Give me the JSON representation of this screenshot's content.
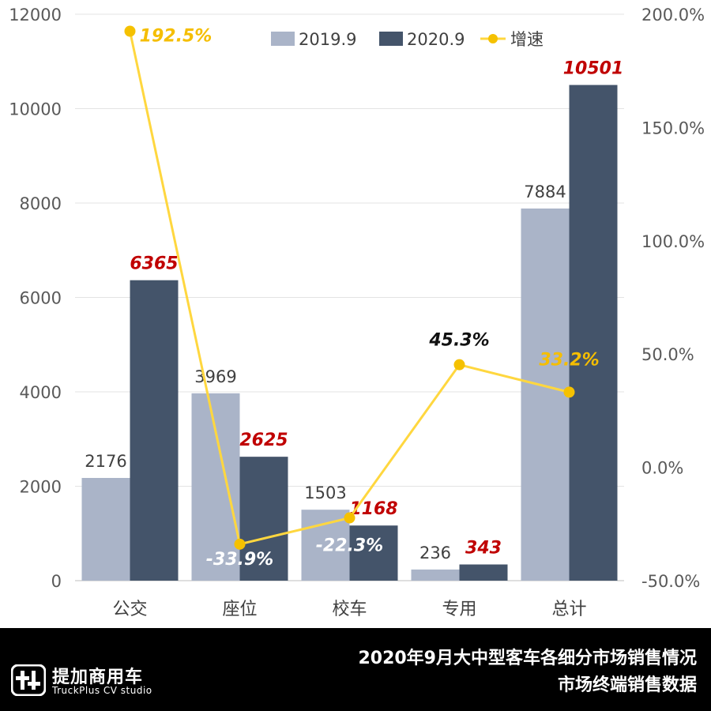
{
  "chart_data": {
    "type": "bar",
    "categories": [
      "公交",
      "座位",
      "校车",
      "专用",
      "总计"
    ],
    "series": [
      {
        "name": "2019.9",
        "values": [
          2176,
          3969,
          1503,
          236,
          7884
        ],
        "color": "#aab4c8",
        "axis": "left"
      },
      {
        "name": "2020.9",
        "values": [
          6365,
          2625,
          1168,
          343,
          10501
        ],
        "color": "#44546a",
        "axis": "left"
      }
    ],
    "line_series": {
      "name": "增速",
      "values": [
        192.5,
        -33.9,
        -22.3,
        45.3,
        33.2
      ],
      "unit": "%",
      "color": "#ffd73f",
      "axis": "right"
    },
    "bar_labels_2019": [
      "2176",
      "3969",
      "1503",
      "236",
      "7884"
    ],
    "bar_labels_2020": [
      "6365",
      "2625",
      "1168",
      "343",
      "10501"
    ],
    "growth_labels": [
      "192.5%",
      "-33.9%",
      "-22.3%",
      "45.3%",
      "33.2%"
    ],
    "growth_label_colors": [
      "#f5be00",
      "#ffffff",
      "#ffffff",
      "#111111",
      "#f5be00"
    ],
    "bar_label_2020_color": "#c00000",
    "left_axis": {
      "ylim": [
        0,
        12000
      ],
      "ticks": [
        "0",
        "2000",
        "4000",
        "6000",
        "8000",
        "10000",
        "12000"
      ]
    },
    "right_axis": {
      "ylim": [
        -50,
        200
      ],
      "ticks": [
        "-50.0%",
        "0.0%",
        "50.0%",
        "100.0%",
        "150.0%",
        "200.0%"
      ]
    },
    "grid": true,
    "legend_position": "top"
  },
  "footer": {
    "logo_name": "提加商用车",
    "logo_sub": "TruckPlus CV studio",
    "caption_line1": "2020年9月大中型客车各细分市场销售情况",
    "caption_line2": "市场终端销售数据",
    "background": "#000000"
  }
}
